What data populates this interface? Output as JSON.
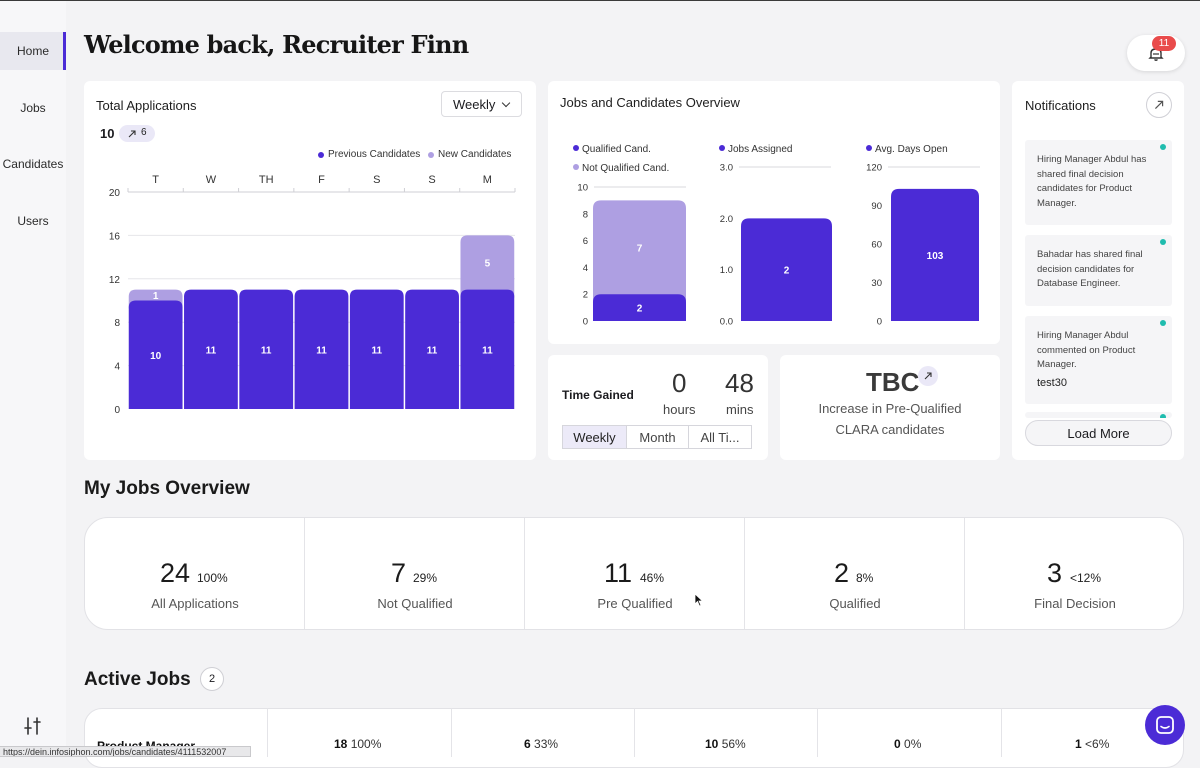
{
  "colors": {
    "accent": "#4b2bd6",
    "accent_light": "#ae9fe2",
    "badge": "#e94b4b",
    "teal": "#1fbcae"
  },
  "sidebar": {
    "items": [
      {
        "label": "Home",
        "active": true
      },
      {
        "label": "Jobs"
      },
      {
        "label": "Candidates"
      },
      {
        "label": "Users"
      }
    ],
    "bottom_icon": "tune-icon"
  },
  "header": {
    "title": "Welcome back, Recruiter Finn",
    "notification_count": "11",
    "bell_icon": "bell-icon"
  },
  "total_applications": {
    "title": "Total Applications",
    "period": "Weekly",
    "total": "10",
    "change": "6",
    "legend": [
      "Previous Candidates",
      "New Candidates"
    ],
    "chart_data": {
      "type": "bar",
      "stacked": true,
      "categories": [
        "T",
        "W",
        "TH",
        "F",
        "S",
        "S",
        "M"
      ],
      "series": [
        {
          "name": "Previous Candidates",
          "values": [
            10,
            11,
            11,
            11,
            11,
            11,
            11
          ]
        },
        {
          "name": "New Candidates",
          "values": [
            1,
            0,
            0,
            0,
            0,
            0,
            5
          ]
        }
      ],
      "data_labels": {
        "previous": [
          "10",
          "11",
          "11",
          "11",
          "11",
          "11",
          "11"
        ],
        "new": [
          "1",
          "",
          "",
          "",
          "",
          "",
          "5"
        ]
      },
      "ylim": [
        0,
        20
      ],
      "yticks": [
        "0",
        "4",
        "8",
        "12",
        "16",
        "20"
      ],
      "legend_position": "top-right"
    }
  },
  "jobs_candidates": {
    "title": "Jobs and Candidates Overview",
    "chart_data": [
      {
        "type": "bar",
        "stacked": true,
        "legend": [
          "Qualified Cand.",
          "Not Qualified Cand."
        ],
        "series": [
          {
            "name": "Qualified Cand.",
            "values": [
              2
            ]
          },
          {
            "name": "Not Qualified Cand.",
            "values": [
              7
            ]
          }
        ],
        "data_labels": [
          "2",
          "7"
        ],
        "ylim": [
          0,
          10
        ],
        "yticks": [
          "0",
          "2",
          "4",
          "6",
          "8",
          "10"
        ]
      },
      {
        "type": "bar",
        "legend": [
          "Jobs Assigned"
        ],
        "series": [
          {
            "name": "Jobs Assigned",
            "values": [
              2
            ]
          }
        ],
        "data_labels": [
          "2"
        ],
        "ylim": [
          0,
          3
        ],
        "yticks": [
          "0.0",
          "1.0",
          "2.0",
          "3.0"
        ]
      },
      {
        "type": "bar",
        "legend": [
          "Avg. Days Open"
        ],
        "series": [
          {
            "name": "Avg. Days Open",
            "values": [
              103
            ]
          }
        ],
        "data_labels": [
          "103"
        ],
        "ylim": [
          0,
          120
        ],
        "yticks": [
          "0",
          "30",
          "60",
          "90",
          "120"
        ]
      }
    ]
  },
  "time_gained": {
    "label": "Time Gained",
    "hours": "0",
    "hours_unit": "hours",
    "mins": "48",
    "mins_unit": "mins",
    "tabs": [
      "Weekly",
      "Month",
      "All Ti..."
    ],
    "active_tab": "Weekly"
  },
  "clara": {
    "value": "TBC",
    "line1": "Increase in Pre-Qualified",
    "line2": "CLARA candidates"
  },
  "notifications": {
    "title": "Notifications",
    "items": [
      {
        "text": "Hiring Manager Abdul has shared final decision candidates for Product Manager."
      },
      {
        "text": "Bahadar has shared final decision candidates for Database Engineer."
      },
      {
        "text": "Hiring Manager Abdul commented on Product Manager.",
        "extra": "test30"
      }
    ],
    "load_more": "Load More"
  },
  "jobs_overview": {
    "title": "My Jobs Overview",
    "cells": [
      {
        "value": "24",
        "pct": "100%",
        "label": "All Applications"
      },
      {
        "value": "7",
        "pct": "29%",
        "label": "Not Qualified"
      },
      {
        "value": "11",
        "pct": "46%",
        "label": "Pre Qualified"
      },
      {
        "value": "2",
        "pct": "8%",
        "label": "Qualified"
      },
      {
        "value": "3",
        "pct": "<12%",
        "label": "Final Decision"
      }
    ]
  },
  "active_jobs": {
    "title": "Active Jobs",
    "count": "2",
    "rows": [
      {
        "title": "Product Manager",
        "cells": [
          {
            "v": "18",
            "p": "100%"
          },
          {
            "v": "6",
            "p": "33%"
          },
          {
            "v": "10",
            "p": "56%"
          },
          {
            "v": "0",
            "p": "0%"
          },
          {
            "v": "1",
            "p": "<6%"
          }
        ]
      }
    ]
  },
  "status_bar": {
    "url": "https://dein.infosiphon.com/jobs/candidates/4111532007"
  }
}
